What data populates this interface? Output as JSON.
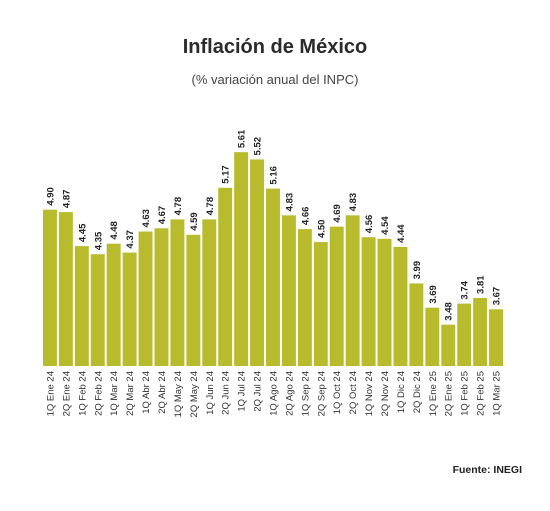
{
  "chart_data": {
    "type": "bar",
    "title": "Inflación de México",
    "subtitle": "(% variación anual del INPC)",
    "source": "Fuente: INEGI",
    "bar_color": "#b8bc2c",
    "categories": [
      "1Q Ene 24",
      "2Q Ene 24",
      "1Q Feb 24",
      "2Q Feb 24",
      "1Q Mar 24",
      "2Q Mar 24",
      "1Q Abr 24",
      "2Q Abr 24",
      "1Q May 24",
      "2Q May 24",
      "1Q Jun 24",
      "2Q Jun 24",
      "1Q Jul 24",
      "2Q Jul 24",
      "1Q Ago 24",
      "2Q Ago 24",
      "1Q Sep 24",
      "2Q Sep 24",
      "1Q Oct 24",
      "2Q Oct 24",
      "1Q Nov 24",
      "2Q Nov 24",
      "1Q Dic 24",
      "2Q Dic 24",
      "1Q Ene 25",
      "2Q Ene 25",
      "1Q Feb 25",
      "2Q Feb 25",
      "1Q Mar 25"
    ],
    "values": [
      4.9,
      4.87,
      4.45,
      4.35,
      4.48,
      4.37,
      4.63,
      4.67,
      4.78,
      4.59,
      4.78,
      5.17,
      5.61,
      5.52,
      5.16,
      4.83,
      4.66,
      4.5,
      4.69,
      4.83,
      4.56,
      4.54,
      4.44,
      3.99,
      3.69,
      3.48,
      3.74,
      3.81,
      3.67
    ],
    "labels": [
      "4.90",
      "4.87",
      "4.45",
      "4.35",
      "4.48",
      "4.37",
      "4.63",
      "4.67",
      "4.78",
      "4.59",
      "4.78",
      "5.17",
      "5.61",
      "5.52",
      "5.16",
      "4.83",
      "4.66",
      "4.50",
      "4.69",
      "4.83",
      "4.56",
      "4.54",
      "4.44",
      "3.99",
      "3.69",
      "3.48",
      "3.74",
      "3.81",
      "3.67"
    ],
    "ylim": [
      2.97,
      5.76
    ],
    "grid": false
  }
}
